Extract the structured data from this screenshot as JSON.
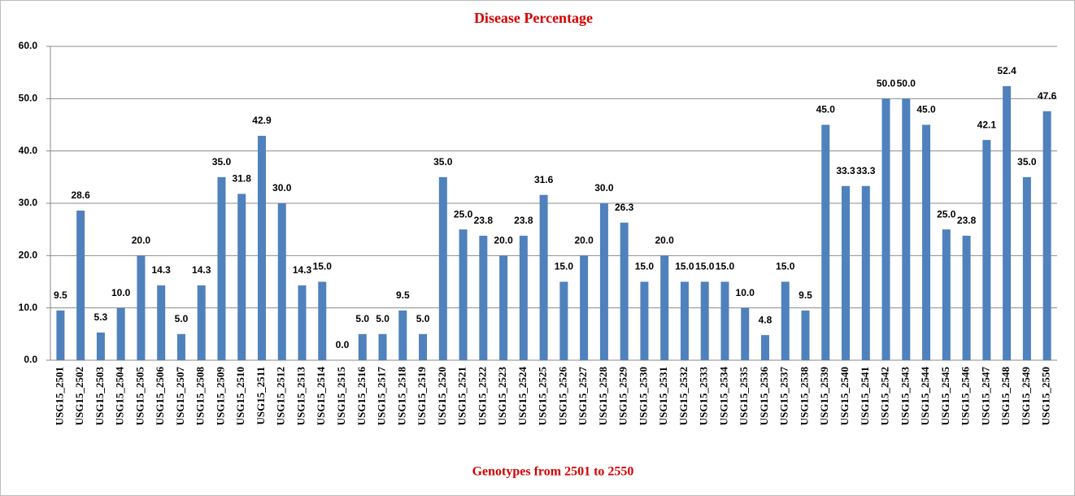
{
  "chart_data": {
    "type": "bar",
    "title": "Disease Percentage",
    "x_label": "Genotypes from 2501 to 2550",
    "categories": [
      "USG15_2501",
      "USG15_2502",
      "USG15_2503",
      "USG15_2504",
      "USG15_2505",
      "USG15_2506",
      "USG15_2507",
      "USG15_2508",
      "USG15_2509",
      "USG15_2510",
      "USG15_2511",
      "USG15_2512",
      "USG15_2513",
      "USG15_2514",
      "USG15_2515",
      "USG15_2516",
      "USG15_2517",
      "USG15_2518",
      "USG15_2519",
      "USG15_2520",
      "USG15_2521",
      "USG15_2522",
      "USG15_2523",
      "USG15_2524",
      "USG15_2525",
      "USG15_2526",
      "USG15_2527",
      "USG15_2528",
      "USG15_2529",
      "USG15_2530",
      "USG15_2531",
      "USG15_2532",
      "USG15_2533",
      "USG15_2534",
      "USG15_2535",
      "USG15_2536",
      "USG15_2537",
      "USG15_2538",
      "USG15_2539",
      "USG15_2540",
      "USG15_2541",
      "USG15_2542",
      "USG15_2543",
      "USG15_2544",
      "USG15_2545",
      "USG15_2546",
      "USG15_2547",
      "USG15_2548",
      "USG15_2549",
      "USG15_2550"
    ],
    "values": [
      9.5,
      28.6,
      5.3,
      10,
      20,
      14.3,
      5,
      14.3,
      35,
      31.8,
      42.9,
      30,
      14.3,
      15,
      0,
      5,
      5,
      9.5,
      5,
      35,
      25,
      23.8,
      20,
      23.8,
      31.6,
      15,
      20,
      30,
      26.3,
      15,
      20,
      15,
      15,
      15,
      10,
      4.8,
      15,
      9.5,
      45,
      33.3,
      33.3,
      50,
      50,
      45,
      25,
      23.8,
      42.1,
      52.4,
      35,
      47.6
    ],
    "value_labels": [
      "9.5",
      "28.6",
      "5.3",
      "10.0",
      "20.0",
      "14.3",
      "5.0",
      "14.3",
      "35.0",
      "31.8",
      "42.9",
      "30.0",
      "14.3",
      "15.0",
      "0.0",
      "5.0",
      "5.0",
      "9.5",
      "5.0",
      "35.0",
      "25.0",
      "23.8",
      "20.0",
      "23.8",
      "31.6",
      "15.0",
      "20.0",
      "30.0",
      "26.3",
      "15.0",
      "20.0",
      "15.0",
      "15.0",
      "15.0",
      "10.0",
      "4.8",
      "15.0",
      "9.5",
      "45.0",
      "33.3",
      "33.3",
      "50.0",
      "50.0",
      "45.0",
      "25.0",
      "23.8",
      "42.1",
      "52.4",
      "35.0",
      "47.6"
    ],
    "color": "#4f81bd",
    "ylim": [
      0,
      60
    ],
    "yticks": [
      {
        "value": 0,
        "label": "0.0"
      },
      {
        "value": 10,
        "label": "10.0"
      },
      {
        "value": 20,
        "label": "20.0"
      },
      {
        "value": 30,
        "label": "30.0"
      },
      {
        "value": 40,
        "label": "40.0"
      },
      {
        "value": 50,
        "label": "50.0"
      },
      {
        "value": 60,
        "label": "60.0"
      }
    ],
    "grid": true
  }
}
